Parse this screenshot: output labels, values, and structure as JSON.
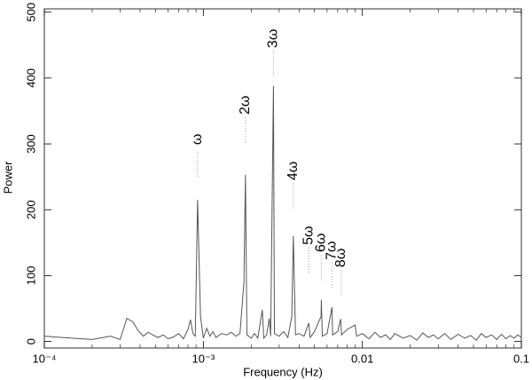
{
  "chart_data": {
    "type": "line",
    "xlabel": "Frequency (Hz)",
    "ylabel": "Power",
    "xscale": "log",
    "xlim": [
      0.0001,
      0.1
    ],
    "ylim": [
      -10,
      505
    ],
    "xticks": [
      {
        "value": 0.0001,
        "label": "10⁻⁴"
      },
      {
        "value": 0.001,
        "label": "10⁻³"
      },
      0.01,
      0.1
    ],
    "yticks": [
      0,
      100,
      200,
      300,
      400,
      500
    ],
    "series": [
      {
        "name": "Power",
        "color": "#555555",
        "x": [
          0.0001,
          0.00013,
          0.00015,
          0.0002,
          0.00026,
          0.0003,
          0.00033,
          0.00036,
          0.00039,
          0.00042,
          0.00045,
          0.00048,
          0.00052,
          0.00056,
          0.0006,
          0.00065,
          0.0007,
          0.00075,
          0.0008,
          0.00083,
          0.00086,
          0.00089,
          0.00092,
          0.00096,
          0.001,
          0.00105,
          0.0011,
          0.00115,
          0.0012,
          0.0013,
          0.0014,
          0.0015,
          0.0016,
          0.0017,
          0.0018,
          0.00184,
          0.00188,
          0.002,
          0.0021,
          0.0022,
          0.00235,
          0.0024,
          0.0025,
          0.0026,
          0.00265,
          0.00276,
          0.0028,
          0.003,
          0.0032,
          0.0034,
          0.0036,
          0.00368,
          0.0038,
          0.004,
          0.0043,
          0.0046,
          0.0047,
          0.005,
          0.0055,
          0.00552,
          0.0056,
          0.006,
          0.00644,
          0.0065,
          0.007,
          0.0073,
          0.0074,
          0.008,
          0.009,
          0.0092,
          0.01,
          0.011,
          0.012,
          0.013,
          0.014,
          0.015,
          0.016,
          0.018,
          0.02,
          0.022,
          0.024,
          0.026,
          0.028,
          0.03,
          0.033,
          0.036,
          0.04,
          0.044,
          0.048,
          0.052,
          0.056,
          0.06,
          0.065,
          0.07,
          0.075,
          0.08,
          0.085,
          0.09,
          0.095,
          0.1
        ],
        "values": [
          8,
          6,
          5,
          3,
          8,
          3,
          35,
          30,
          16,
          8,
          14,
          10,
          6,
          10,
          4,
          7,
          12,
          4,
          18,
          33,
          12,
          8,
          215,
          38,
          5,
          20,
          8,
          15,
          6,
          12,
          10,
          14,
          8,
          12,
          90,
          253,
          10,
          5,
          12,
          5,
          48,
          5,
          10,
          35,
          8,
          388,
          12,
          8,
          15,
          6,
          38,
          160,
          10,
          12,
          8,
          28,
          6,
          15,
          38,
          63,
          8,
          12,
          52,
          10,
          15,
          34,
          10,
          18,
          25,
          8,
          12,
          4,
          14,
          6,
          10,
          3,
          12,
          5,
          9,
          2,
          13,
          6,
          10,
          4,
          12,
          3,
          11,
          5,
          9,
          2,
          12,
          6,
          10,
          3,
          11,
          4,
          9,
          5,
          10,
          6
        ]
      }
    ],
    "annotations": [
      {
        "text": "ω",
        "x": 0.00092,
        "y": 307
      },
      {
        "text": "2ω",
        "x": 0.00184,
        "y": 359
      },
      {
        "text": "3ω",
        "x": 0.00276,
        "y": 460
      },
      {
        "text": "4ω",
        "x": 0.00368,
        "y": 259
      },
      {
        "text": "5ω",
        "x": 0.0046,
        "y": 161
      },
      {
        "text": "6ω",
        "x": 0.00552,
        "y": 150
      },
      {
        "text": "7ω",
        "x": 0.00644,
        "y": 138
      },
      {
        "text": "8ω",
        "x": 0.00736,
        "y": 127
      }
    ]
  }
}
